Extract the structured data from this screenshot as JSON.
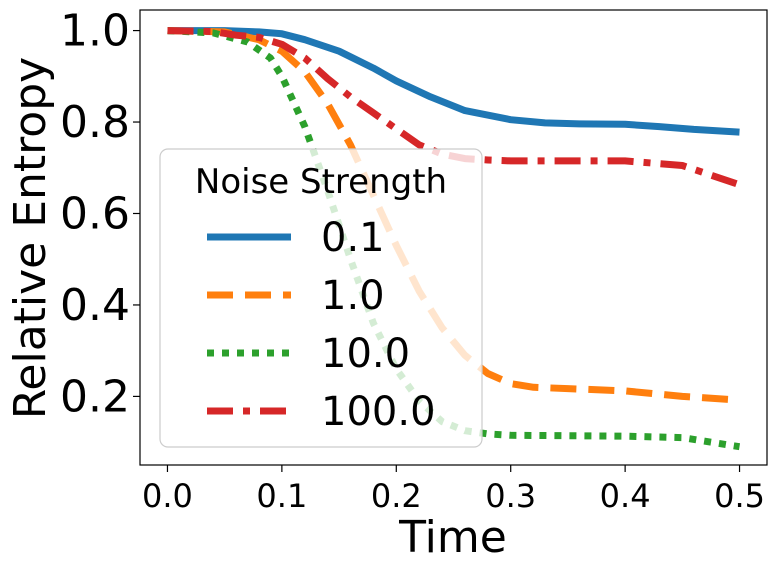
{
  "chart_data": {
    "type": "line",
    "xlabel": "Time",
    "ylabel": "Relative Entropy",
    "xlim": [
      -0.024,
      0.524
    ],
    "ylim": [
      0.05,
      1.045
    ],
    "xticks": [
      0.0,
      0.1,
      0.2,
      0.3,
      0.4,
      0.5
    ],
    "xtick_labels": [
      "0.0",
      "0.1",
      "0.2",
      "0.3",
      "0.4",
      "0.5"
    ],
    "yticks": [
      0.2,
      0.4,
      0.6,
      0.8,
      1.0
    ],
    "ytick_labels": [
      "0.2",
      "0.4",
      "0.6",
      "0.8",
      "1.0"
    ],
    "grid": false,
    "legend": {
      "title": "Noise Strength",
      "placement": "lower-left"
    },
    "series": [
      {
        "name": "0.1",
        "color": "#1f77b4",
        "style": "solid",
        "x": [
          0.0,
          0.05,
          0.08,
          0.1,
          0.12,
          0.15,
          0.18,
          0.2,
          0.23,
          0.26,
          0.3,
          0.33,
          0.36,
          0.4,
          0.43,
          0.46,
          0.5
        ],
        "y": [
          1.0,
          1.0,
          0.997,
          0.993,
          0.98,
          0.955,
          0.918,
          0.89,
          0.855,
          0.825,
          0.805,
          0.798,
          0.796,
          0.795,
          0.79,
          0.784,
          0.778
        ]
      },
      {
        "name": "1.0",
        "color": "#ff7f0e",
        "style": "dashed",
        "x": [
          0.0,
          0.05,
          0.08,
          0.1,
          0.12,
          0.14,
          0.16,
          0.18,
          0.2,
          0.22,
          0.24,
          0.26,
          0.28,
          0.3,
          0.32,
          0.35,
          0.4,
          0.45,
          0.5
        ],
        "y": [
          1.0,
          0.997,
          0.98,
          0.955,
          0.91,
          0.84,
          0.75,
          0.64,
          0.53,
          0.43,
          0.35,
          0.29,
          0.25,
          0.228,
          0.22,
          0.217,
          0.212,
          0.2,
          0.192
        ]
      },
      {
        "name": "10.0",
        "color": "#2ca02c",
        "style": "dotted",
        "x": [
          0.0,
          0.04,
          0.07,
          0.09,
          0.1,
          0.12,
          0.14,
          0.16,
          0.18,
          0.2,
          0.22,
          0.24,
          0.26,
          0.28,
          0.3,
          0.35,
          0.4,
          0.45,
          0.5
        ],
        "y": [
          1.0,
          0.995,
          0.975,
          0.94,
          0.9,
          0.79,
          0.65,
          0.5,
          0.36,
          0.26,
          0.19,
          0.145,
          0.125,
          0.118,
          0.115,
          0.114,
          0.113,
          0.11,
          0.09
        ]
      },
      {
        "name": "100.0",
        "color": "#d62728",
        "style": "dashdot",
        "x": [
          0.0,
          0.04,
          0.06,
          0.08,
          0.1,
          0.12,
          0.14,
          0.16,
          0.18,
          0.2,
          0.22,
          0.24,
          0.26,
          0.28,
          0.3,
          0.35,
          0.4,
          0.45,
          0.5
        ],
        "y": [
          1.0,
          0.998,
          0.99,
          0.985,
          0.97,
          0.94,
          0.895,
          0.855,
          0.82,
          0.785,
          0.75,
          0.73,
          0.72,
          0.717,
          0.715,
          0.715,
          0.715,
          0.705,
          0.663
        ]
      }
    ]
  }
}
